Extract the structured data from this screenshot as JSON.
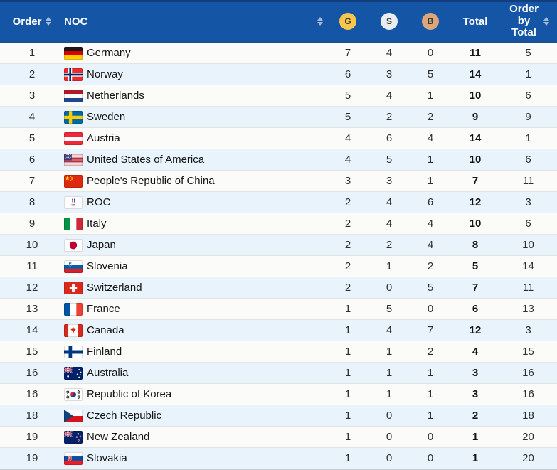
{
  "colors": {
    "header_bg": "#1456A5",
    "row_bg": "#FBFBF9",
    "row_alt_bg": "#E9F3FB",
    "gold": "#F6C64D",
    "silver": "#E8EDF2",
    "bronze": "#DBA67B"
  },
  "header": {
    "order_label": "Order",
    "noc_label": "NOC",
    "gold_label": "G",
    "silver_label": "S",
    "bronze_label": "B",
    "total_label": "Total",
    "order_by_total_label": "Order by Total",
    "sort_icon": "sort-arrows-icon"
  },
  "rows": [
    {
      "order": "1",
      "flag": "germany-flag",
      "noc": "Germany",
      "gold": "7",
      "silver": "4",
      "bronze": "0",
      "total": "11",
      "order_by_total": "5"
    },
    {
      "order": "2",
      "flag": "norway-flag",
      "noc": "Norway",
      "gold": "6",
      "silver": "3",
      "bronze": "5",
      "total": "14",
      "order_by_total": "1"
    },
    {
      "order": "3",
      "flag": "netherlands-flag",
      "noc": "Netherlands",
      "gold": "5",
      "silver": "4",
      "bronze": "1",
      "total": "10",
      "order_by_total": "6"
    },
    {
      "order": "4",
      "flag": "sweden-flag",
      "noc": "Sweden",
      "gold": "5",
      "silver": "2",
      "bronze": "2",
      "total": "9",
      "order_by_total": "9"
    },
    {
      "order": "5",
      "flag": "austria-flag",
      "noc": "Austria",
      "gold": "4",
      "silver": "6",
      "bronze": "4",
      "total": "14",
      "order_by_total": "1"
    },
    {
      "order": "6",
      "flag": "usa-flag",
      "noc": "United States of America",
      "gold": "4",
      "silver": "5",
      "bronze": "1",
      "total": "10",
      "order_by_total": "6"
    },
    {
      "order": "7",
      "flag": "china-flag",
      "noc": "People's Republic of China",
      "gold": "3",
      "silver": "3",
      "bronze": "1",
      "total": "7",
      "order_by_total": "11"
    },
    {
      "order": "8",
      "flag": "roc-flag",
      "noc": "ROC",
      "gold": "2",
      "silver": "4",
      "bronze": "6",
      "total": "12",
      "order_by_total": "3"
    },
    {
      "order": "9",
      "flag": "italy-flag",
      "noc": "Italy",
      "gold": "2",
      "silver": "4",
      "bronze": "4",
      "total": "10",
      "order_by_total": "6"
    },
    {
      "order": "10",
      "flag": "japan-flag",
      "noc": "Japan",
      "gold": "2",
      "silver": "2",
      "bronze": "4",
      "total": "8",
      "order_by_total": "10"
    },
    {
      "order": "11",
      "flag": "slovenia-flag",
      "noc": "Slovenia",
      "gold": "2",
      "silver": "1",
      "bronze": "2",
      "total": "5",
      "order_by_total": "14"
    },
    {
      "order": "12",
      "flag": "switzerland-flag",
      "noc": "Switzerland",
      "gold": "2",
      "silver": "0",
      "bronze": "5",
      "total": "7",
      "order_by_total": "11"
    },
    {
      "order": "13",
      "flag": "france-flag",
      "noc": "France",
      "gold": "1",
      "silver": "5",
      "bronze": "0",
      "total": "6",
      "order_by_total": "13"
    },
    {
      "order": "14",
      "flag": "canada-flag",
      "noc": "Canada",
      "gold": "1",
      "silver": "4",
      "bronze": "7",
      "total": "12",
      "order_by_total": "3"
    },
    {
      "order": "15",
      "flag": "finland-flag",
      "noc": "Finland",
      "gold": "1",
      "silver": "1",
      "bronze": "2",
      "total": "4",
      "order_by_total": "15"
    },
    {
      "order": "16",
      "flag": "australia-flag",
      "noc": "Australia",
      "gold": "1",
      "silver": "1",
      "bronze": "1",
      "total": "3",
      "order_by_total": "16"
    },
    {
      "order": "16",
      "flag": "korea-flag",
      "noc": "Republic of Korea",
      "gold": "1",
      "silver": "1",
      "bronze": "1",
      "total": "3",
      "order_by_total": "16"
    },
    {
      "order": "18",
      "flag": "czech-flag",
      "noc": "Czech Republic",
      "gold": "1",
      "silver": "0",
      "bronze": "1",
      "total": "2",
      "order_by_total": "18"
    },
    {
      "order": "19",
      "flag": "newzealand-flag",
      "noc": "New Zealand",
      "gold": "1",
      "silver": "0",
      "bronze": "0",
      "total": "1",
      "order_by_total": "20"
    },
    {
      "order": "19",
      "flag": "slovakia-flag",
      "noc": "Slovakia",
      "gold": "1",
      "silver": "0",
      "bronze": "0",
      "total": "1",
      "order_by_total": "20"
    }
  ]
}
